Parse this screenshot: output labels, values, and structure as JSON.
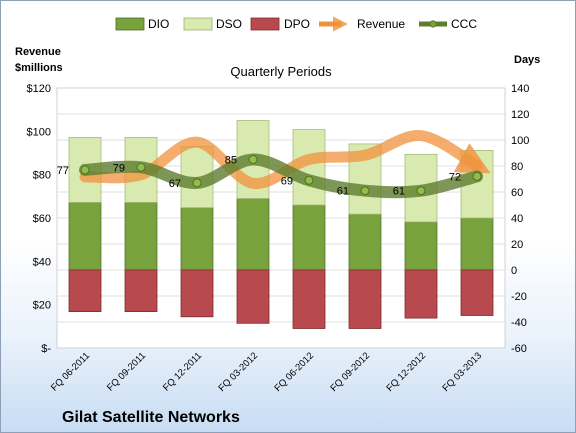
{
  "chart_data": {
    "type": "bar",
    "title": "Quarterly Periods",
    "company": "Gilat Satellite Networks",
    "left_axis": {
      "label_line1": "Revenue",
      "label_line2": "$millions",
      "ylim": [
        0,
        120
      ],
      "ticks": [
        "$-",
        "$20",
        "$40",
        "$60",
        "$80",
        "$100",
        "$120"
      ]
    },
    "right_axis": {
      "label": "Days",
      "ylim": [
        -60,
        140
      ],
      "ticks": [
        "-60",
        "-40",
        "-20",
        "0",
        "20",
        "40",
        "60",
        "80",
        "100",
        "120",
        "140"
      ]
    },
    "categories": [
      "FQ 06-2011",
      "FQ 09-2011",
      "FQ 12-2011",
      "FQ 03-2012",
      "FQ 06-2012",
      "FQ 09-2012",
      "FQ 12-2012",
      "FQ 03-2013"
    ],
    "legend": [
      "DIO",
      "DSO",
      "DPO",
      "Revenue",
      "CCC"
    ],
    "colors": {
      "DIO": "#77a23c",
      "DSO": "#d9eab0",
      "DPO": "#b84a4f",
      "Revenue": "#f0913c",
      "CCC": "#5e7d2e"
    },
    "series": [
      {
        "name": "DIO",
        "axis": "right",
        "values": [
          52,
          52,
          48,
          55,
          50,
          43,
          37,
          40
        ]
      },
      {
        "name": "DSO",
        "axis": "right",
        "values": [
          50,
          50,
          47,
          60,
          58,
          54,
          52,
          52
        ]
      },
      {
        "name": "DPO",
        "axis": "right",
        "values": [
          -32,
          -32,
          -36,
          -41,
          -45,
          -45,
          -37,
          -35
        ]
      },
      {
        "name": "Revenue",
        "axis": "left",
        "values": [
          79,
          80,
          95,
          76,
          87,
          89,
          98,
          84
        ]
      },
      {
        "name": "CCC",
        "axis": "right",
        "values": [
          77,
          79,
          67,
          85,
          69,
          61,
          61,
          72
        ]
      }
    ],
    "ccc_labels": [
      "77",
      "79",
      "67",
      "85",
      "69",
      "61",
      "61",
      "72"
    ]
  }
}
